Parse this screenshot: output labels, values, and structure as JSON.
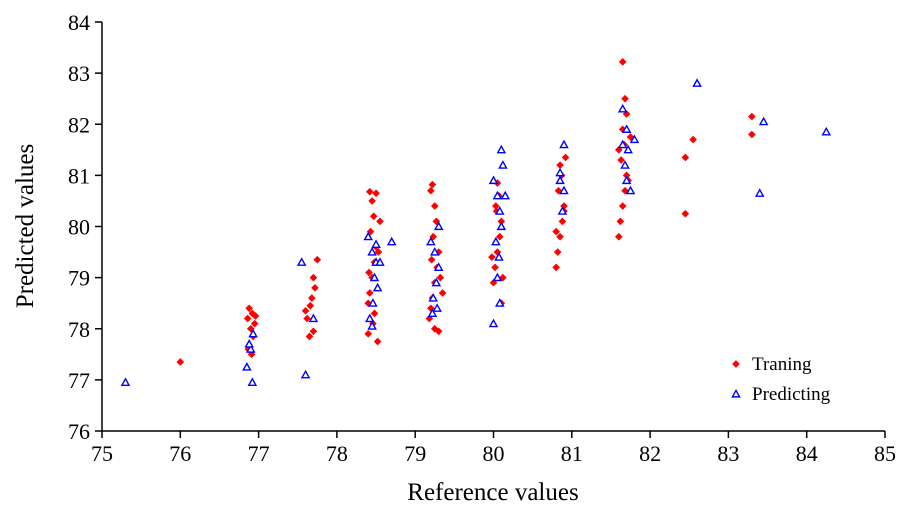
{
  "chart_data": {
    "type": "scatter",
    "xlabel": "Reference values",
    "ylabel": "Predicted values",
    "xlim": [
      75,
      85
    ],
    "ylim": [
      76,
      84
    ],
    "xticks": [
      75,
      76,
      77,
      78,
      79,
      80,
      81,
      82,
      83,
      84,
      85
    ],
    "yticks": [
      76,
      77,
      78,
      79,
      80,
      81,
      82,
      83,
      84
    ],
    "grid": false,
    "legend_position": "bottom-right",
    "series": [
      {
        "name": "Traning",
        "color": "#ff0000",
        "marker": "diamond",
        "points": [
          [
            76.0,
            77.35
          ],
          [
            76.88,
            78.4
          ],
          [
            76.92,
            78.3
          ],
          [
            76.86,
            78.2
          ],
          [
            76.95,
            78.1
          ],
          [
            76.9,
            78.0
          ],
          [
            76.93,
            77.85
          ],
          [
            76.87,
            77.6
          ],
          [
            76.91,
            77.5
          ],
          [
            76.96,
            78.25
          ],
          [
            77.6,
            78.35
          ],
          [
            77.62,
            78.2
          ],
          [
            77.65,
            77.85
          ],
          [
            77.7,
            77.95
          ],
          [
            77.68,
            78.6
          ],
          [
            77.72,
            78.8
          ],
          [
            77.7,
            79.0
          ],
          [
            77.75,
            79.35
          ],
          [
            77.66,
            78.45
          ],
          [
            78.4,
            78.5
          ],
          [
            78.42,
            78.7
          ],
          [
            78.45,
            79.0
          ],
          [
            78.48,
            79.3
          ],
          [
            78.5,
            79.6
          ],
          [
            78.43,
            79.9
          ],
          [
            78.47,
            80.2
          ],
          [
            78.45,
            80.5
          ],
          [
            78.5,
            80.65
          ],
          [
            78.42,
            80.68
          ],
          [
            78.55,
            80.1
          ],
          [
            78.4,
            77.9
          ],
          [
            78.52,
            77.75
          ],
          [
            78.46,
            78.1
          ],
          [
            78.48,
            78.3
          ],
          [
            78.53,
            79.5
          ],
          [
            78.41,
            79.1
          ],
          [
            79.2,
            78.4
          ],
          [
            79.22,
            78.6
          ],
          [
            79.25,
            78.9
          ],
          [
            79.28,
            79.2
          ],
          [
            79.3,
            79.5
          ],
          [
            79.23,
            79.8
          ],
          [
            79.27,
            80.1
          ],
          [
            79.25,
            80.4
          ],
          [
            79.2,
            80.7
          ],
          [
            79.22,
            80.82
          ],
          [
            79.32,
            79.0
          ],
          [
            79.18,
            78.2
          ],
          [
            79.3,
            77.95
          ],
          [
            79.25,
            78.0
          ],
          [
            79.35,
            78.7
          ],
          [
            79.21,
            79.35
          ],
          [
            80.0,
            78.9
          ],
          [
            80.02,
            79.2
          ],
          [
            80.05,
            79.5
          ],
          [
            80.08,
            79.8
          ],
          [
            80.1,
            80.1
          ],
          [
            80.03,
            80.4
          ],
          [
            80.07,
            80.6
          ],
          [
            80.05,
            80.85
          ],
          [
            80.12,
            79.0
          ],
          [
            79.98,
            79.4
          ],
          [
            80.1,
            78.5
          ],
          [
            80.04,
            80.3
          ],
          [
            80.8,
            79.2
          ],
          [
            80.82,
            79.5
          ],
          [
            80.85,
            79.8
          ],
          [
            80.88,
            80.1
          ],
          [
            80.9,
            80.4
          ],
          [
            80.83,
            80.7
          ],
          [
            80.87,
            81.0
          ],
          [
            80.85,
            81.2
          ],
          [
            80.92,
            81.35
          ],
          [
            80.8,
            79.9
          ],
          [
            80.9,
            80.3
          ],
          [
            81.6,
            79.8
          ],
          [
            81.62,
            80.1
          ],
          [
            81.65,
            80.4
          ],
          [
            81.68,
            80.7
          ],
          [
            81.7,
            81.0
          ],
          [
            81.63,
            81.3
          ],
          [
            81.67,
            81.6
          ],
          [
            81.65,
            81.9
          ],
          [
            81.7,
            82.2
          ],
          [
            81.68,
            82.5
          ],
          [
            81.65,
            83.22
          ],
          [
            81.72,
            80.9
          ],
          [
            81.6,
            81.5
          ],
          [
            81.75,
            81.75
          ],
          [
            82.45,
            81.35
          ],
          [
            82.45,
            80.25
          ],
          [
            82.55,
            81.7
          ],
          [
            83.3,
            82.15
          ],
          [
            83.3,
            81.8
          ]
        ]
      },
      {
        "name": "Predicting",
        "color": "#0000ff",
        "marker": "triangle",
        "points": [
          [
            75.3,
            76.95
          ],
          [
            76.85,
            77.25
          ],
          [
            76.92,
            76.95
          ],
          [
            76.9,
            77.6
          ],
          [
            76.88,
            77.7
          ],
          [
            76.93,
            77.9
          ],
          [
            77.55,
            79.3
          ],
          [
            77.6,
            77.1
          ],
          [
            77.7,
            78.2
          ],
          [
            78.4,
            79.8
          ],
          [
            78.45,
            79.5
          ],
          [
            78.5,
            79.3
          ],
          [
            78.48,
            79.0
          ],
          [
            78.52,
            78.8
          ],
          [
            78.46,
            78.5
          ],
          [
            78.42,
            78.2
          ],
          [
            78.55,
            79.3
          ],
          [
            78.7,
            79.7
          ],
          [
            78.5,
            79.65
          ],
          [
            78.45,
            78.05
          ],
          [
            79.2,
            79.7
          ],
          [
            79.25,
            79.5
          ],
          [
            79.3,
            79.2
          ],
          [
            79.27,
            78.9
          ],
          [
            79.23,
            78.6
          ],
          [
            79.28,
            78.4
          ],
          [
            79.22,
            78.3
          ],
          [
            79.3,
            80.0
          ],
          [
            80.0,
            80.9
          ],
          [
            80.05,
            80.6
          ],
          [
            80.08,
            80.3
          ],
          [
            80.1,
            80.0
          ],
          [
            80.03,
            79.7
          ],
          [
            80.07,
            79.4
          ],
          [
            80.05,
            79.0
          ],
          [
            80.1,
            81.5
          ],
          [
            80.12,
            81.2
          ],
          [
            80.0,
            78.1
          ],
          [
            80.15,
            80.6
          ],
          [
            80.08,
            78.5
          ],
          [
            80.85,
            81.05
          ],
          [
            80.9,
            80.7
          ],
          [
            80.88,
            80.3
          ],
          [
            80.9,
            81.6
          ],
          [
            80.85,
            80.9
          ],
          [
            81.65,
            82.3
          ],
          [
            81.7,
            81.9
          ],
          [
            81.72,
            81.5
          ],
          [
            81.68,
            81.2
          ],
          [
            81.7,
            80.9
          ],
          [
            81.75,
            80.7
          ],
          [
            81.8,
            81.7
          ],
          [
            81.65,
            81.6
          ],
          [
            82.6,
            82.8
          ],
          [
            83.4,
            80.65
          ],
          [
            83.45,
            82.05
          ],
          [
            84.25,
            81.85
          ]
        ]
      }
    ]
  }
}
